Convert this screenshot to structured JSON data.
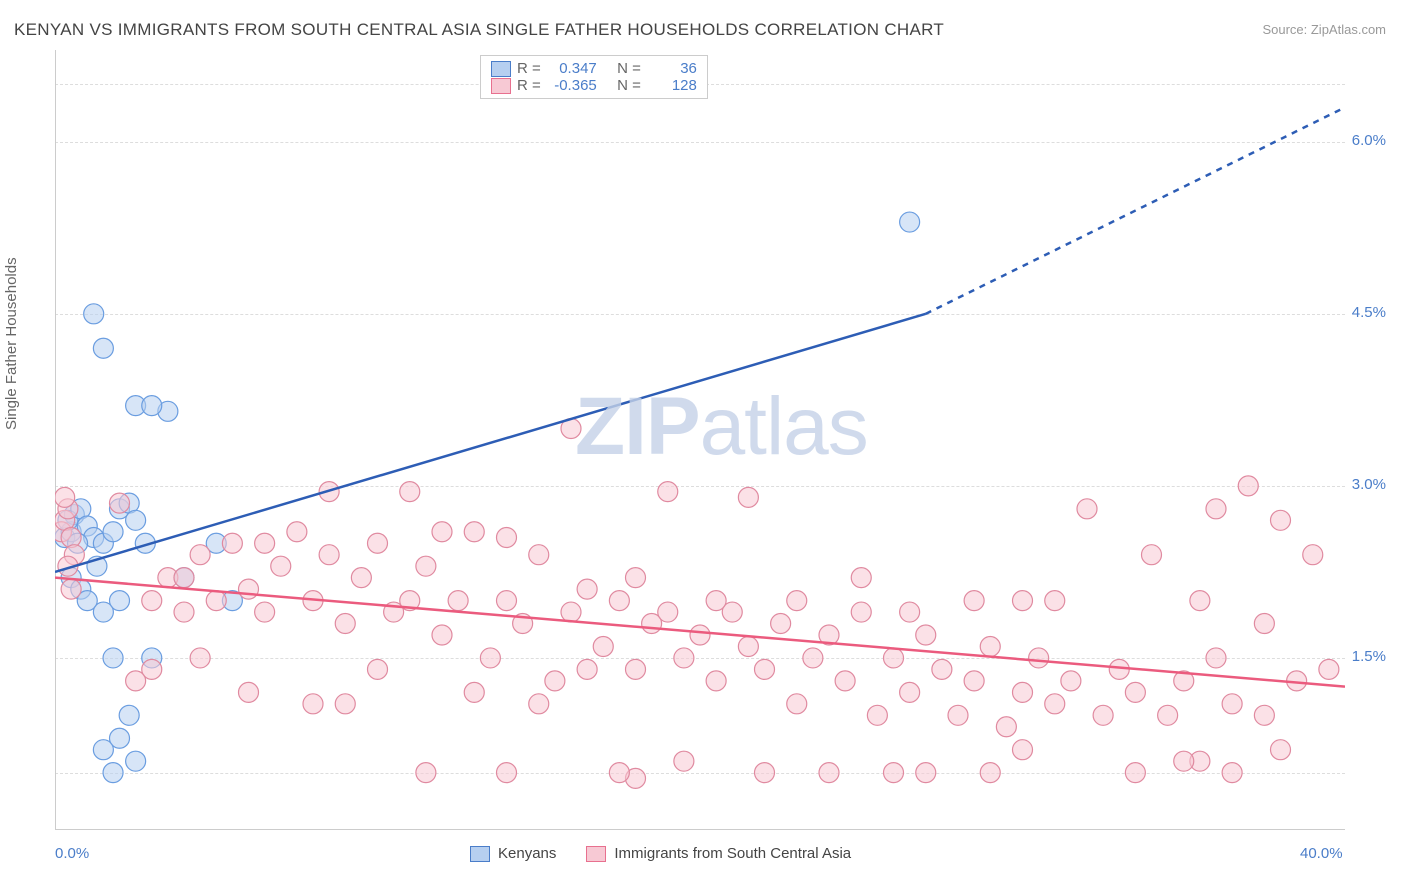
{
  "chart": {
    "type": "scatter",
    "title": "KENYAN VS IMMIGRANTS FROM SOUTH CENTRAL ASIA SINGLE FATHER HOUSEHOLDS CORRELATION CHART",
    "source": "Source: ZipAtlas.com",
    "watermark": "ZIPatlas",
    "watermark_bold_part": "ZIP",
    "watermark_light_part": "atlas",
    "y_axis_label": "Single Father Households",
    "background_color": "#ffffff",
    "grid_color": "#dddddd",
    "axis_color": "#cccccc",
    "tick_color": "#4a7dc9",
    "title_color": "#444444",
    "title_fontsize": 17,
    "tick_fontsize": 15,
    "xlim": [
      0,
      40
    ],
    "ylim": [
      0,
      6.8
    ],
    "x_ticks": [
      {
        "value": 0,
        "label": "0.0%"
      },
      {
        "value": 40,
        "label": "40.0%"
      }
    ],
    "y_ticks": [
      {
        "value": 1.5,
        "label": "1.5%"
      },
      {
        "value": 3.0,
        "label": "3.0%"
      },
      {
        "value": 4.5,
        "label": "4.5%"
      },
      {
        "value": 6.0,
        "label": "6.0%"
      }
    ],
    "y_gridlines": [
      0.5,
      1.5,
      3.0,
      4.5,
      6.0,
      6.5
    ],
    "legend_stats": [
      {
        "swatch_fill": "#b6cff0",
        "swatch_border": "#4a7dc9",
        "r_label": "R =",
        "r_value": "0.347",
        "n_label": "N =",
        "n_value": "36"
      },
      {
        "swatch_fill": "#f7c9d4",
        "swatch_border": "#e8708f",
        "r_label": "R =",
        "r_value": "-0.365",
        "n_label": "N =",
        "n_value": "128"
      }
    ],
    "bottom_legend": [
      {
        "swatch_fill": "#b6cff0",
        "swatch_border": "#4a7dc9",
        "label": "Kenyans"
      },
      {
        "swatch_fill": "#f7c9d4",
        "swatch_border": "#e8708f",
        "label": "Immigrants from South Central Asia"
      }
    ],
    "series": [
      {
        "name": "Kenyans",
        "marker_fill": "#b6cff0",
        "marker_stroke": "#6a9de0",
        "marker_fill_opacity": 0.55,
        "marker_radius": 10,
        "trendline_color": "#2d5db5",
        "trendline_width": 2.5,
        "trendline_start": [
          0,
          2.25
        ],
        "trendline_solid_end": [
          27,
          4.5
        ],
        "trendline_dashed_end": [
          40,
          6.3
        ],
        "points": [
          [
            0.3,
            2.55
          ],
          [
            0.5,
            2.6
          ],
          [
            0.6,
            2.75
          ],
          [
            0.4,
            2.7
          ],
          [
            0.8,
            2.8
          ],
          [
            1.0,
            2.65
          ],
          [
            1.2,
            2.55
          ],
          [
            0.7,
            2.5
          ],
          [
            0.5,
            2.2
          ],
          [
            0.8,
            2.1
          ],
          [
            1.0,
            2.0
          ],
          [
            1.3,
            2.3
          ],
          [
            1.5,
            2.5
          ],
          [
            1.8,
            2.6
          ],
          [
            2.0,
            2.8
          ],
          [
            2.3,
            2.85
          ],
          [
            2.5,
            2.7
          ],
          [
            2.8,
            2.5
          ],
          [
            2.0,
            2.0
          ],
          [
            1.5,
            1.9
          ],
          [
            1.8,
            1.5
          ],
          [
            3.0,
            1.5
          ],
          [
            2.3,
            1.0
          ],
          [
            2.0,
            0.8
          ],
          [
            1.5,
            0.7
          ],
          [
            2.5,
            0.6
          ],
          [
            1.8,
            0.5
          ],
          [
            1.2,
            4.5
          ],
          [
            1.5,
            4.2
          ],
          [
            2.5,
            3.7
          ],
          [
            3.5,
            3.65
          ],
          [
            3.0,
            3.7
          ],
          [
            5.0,
            2.5
          ],
          [
            4.0,
            2.2
          ],
          [
            5.5,
            2.0
          ],
          [
            26.5,
            5.3
          ]
        ]
      },
      {
        "name": "Immigrants from South Central Asia",
        "marker_fill": "#f7c9d4",
        "marker_stroke": "#e08aa0",
        "marker_fill_opacity": 0.55,
        "marker_radius": 10,
        "trendline_color": "#eb5b7e",
        "trendline_width": 2.5,
        "trendline_start": [
          0,
          2.2
        ],
        "trendline_solid_end": [
          40,
          1.25
        ],
        "points": [
          [
            0.2,
            2.6
          ],
          [
            0.3,
            2.7
          ],
          [
            0.4,
            2.8
          ],
          [
            0.3,
            2.9
          ],
          [
            0.5,
            2.55
          ],
          [
            0.6,
            2.4
          ],
          [
            0.4,
            2.3
          ],
          [
            0.5,
            2.1
          ],
          [
            2.0,
            2.85
          ],
          [
            3.0,
            2.0
          ],
          [
            3.5,
            2.2
          ],
          [
            4.0,
            1.9
          ],
          [
            4.5,
            2.4
          ],
          [
            5.0,
            2.0
          ],
          [
            5.5,
            2.5
          ],
          [
            6.0,
            2.1
          ],
          [
            6.5,
            1.9
          ],
          [
            7.0,
            2.3
          ],
          [
            7.5,
            2.6
          ],
          [
            8.0,
            2.0
          ],
          [
            8.5,
            2.4
          ],
          [
            9.0,
            1.8
          ],
          [
            9.5,
            2.2
          ],
          [
            10.0,
            2.5
          ],
          [
            10.5,
            1.9
          ],
          [
            11.0,
            2.0
          ],
          [
            11.5,
            2.3
          ],
          [
            12.0,
            1.7
          ],
          [
            12.5,
            2.0
          ],
          [
            13.0,
            2.6
          ],
          [
            13.5,
            1.5
          ],
          [
            14.0,
            2.0
          ],
          [
            14.5,
            1.8
          ],
          [
            15.0,
            2.4
          ],
          [
            15.5,
            1.3
          ],
          [
            16.0,
            1.9
          ],
          [
            16.5,
            2.1
          ],
          [
            17.0,
            1.6
          ],
          [
            17.5,
            2.0
          ],
          [
            18.0,
            1.4
          ],
          [
            18.5,
            1.8
          ],
          [
            19.0,
            2.95
          ],
          [
            19.5,
            1.5
          ],
          [
            20.0,
            1.7
          ],
          [
            20.5,
            1.3
          ],
          [
            21.0,
            1.9
          ],
          [
            21.5,
            1.6
          ],
          [
            22.0,
            1.4
          ],
          [
            22.5,
            1.8
          ],
          [
            23.0,
            1.1
          ],
          [
            23.5,
            1.5
          ],
          [
            24.0,
            1.7
          ],
          [
            24.5,
            1.3
          ],
          [
            25.0,
            1.9
          ],
          [
            25.5,
            1.0
          ],
          [
            26.0,
            1.5
          ],
          [
            26.5,
            1.2
          ],
          [
            27.0,
            1.7
          ],
          [
            27.5,
            1.4
          ],
          [
            28.0,
            1.0
          ],
          [
            28.5,
            1.3
          ],
          [
            29.0,
            1.6
          ],
          [
            29.5,
            0.9
          ],
          [
            30.0,
            1.2
          ],
          [
            30.5,
            1.5
          ],
          [
            31.0,
            1.1
          ],
          [
            31.5,
            1.3
          ],
          [
            32.0,
            2.8
          ],
          [
            32.5,
            1.0
          ],
          [
            33.0,
            1.4
          ],
          [
            33.5,
            1.2
          ],
          [
            34.0,
            2.4
          ],
          [
            34.5,
            1.0
          ],
          [
            35.0,
            1.3
          ],
          [
            35.5,
            0.6
          ],
          [
            36.0,
            1.5
          ],
          [
            36.5,
            1.1
          ],
          [
            37.0,
            3.0
          ],
          [
            37.5,
            1.0
          ],
          [
            38.0,
            2.7
          ],
          [
            38.5,
            1.3
          ],
          [
            39.0,
            2.4
          ],
          [
            39.5,
            1.4
          ],
          [
            11.0,
            2.95
          ],
          [
            12.0,
            2.6
          ],
          [
            14.0,
            2.55
          ],
          [
            16.0,
            3.5
          ],
          [
            6.0,
            1.2
          ],
          [
            8.0,
            1.1
          ],
          [
            10.0,
            1.4
          ],
          [
            14.0,
            0.5
          ],
          [
            18.0,
            0.45
          ],
          [
            22.0,
            0.5
          ],
          [
            26.0,
            0.5
          ],
          [
            30.0,
            0.7
          ],
          [
            4.5,
            1.5
          ],
          [
            3.0,
            1.4
          ],
          [
            2.5,
            1.3
          ],
          [
            19.0,
            1.9
          ],
          [
            8.5,
            2.95
          ],
          [
            17.5,
            0.5
          ],
          [
            19.5,
            0.6
          ],
          [
            13.0,
            1.2
          ],
          [
            15.0,
            1.1
          ],
          [
            11.5,
            0.5
          ],
          [
            23.0,
            2.0
          ],
          [
            25.0,
            2.2
          ],
          [
            27.0,
            0.5
          ],
          [
            28.5,
            2.0
          ],
          [
            16.5,
            1.4
          ],
          [
            18.0,
            2.2
          ],
          [
            20.5,
            2.0
          ],
          [
            6.5,
            2.5
          ],
          [
            4.0,
            2.2
          ],
          [
            31.0,
            2.0
          ],
          [
            33.5,
            0.5
          ],
          [
            35.0,
            0.6
          ],
          [
            36.5,
            0.5
          ],
          [
            38.0,
            0.7
          ],
          [
            35.5,
            2.0
          ],
          [
            21.5,
            2.9
          ],
          [
            30.0,
            2.0
          ],
          [
            29.0,
            0.5
          ],
          [
            24.0,
            0.5
          ],
          [
            36.0,
            2.8
          ],
          [
            37.5,
            1.8
          ],
          [
            26.5,
            1.9
          ],
          [
            9.0,
            1.1
          ]
        ]
      }
    ]
  }
}
